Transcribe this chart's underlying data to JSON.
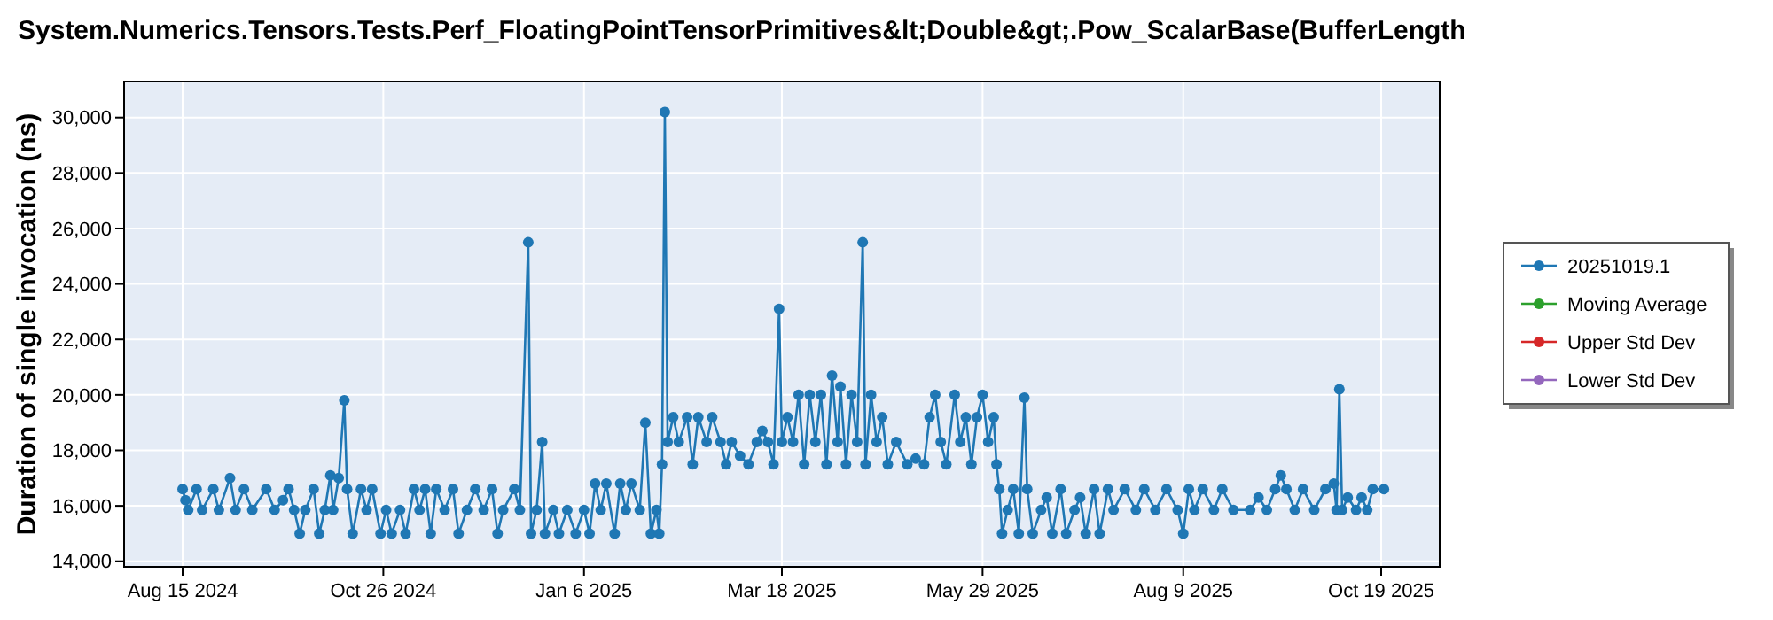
{
  "chart_data": {
    "type": "line",
    "title": "System.Numerics.Tensors.Tests.Perf_FloatingPointTensorPrimitives&lt;Double&gt;.Pow_ScalarBase(BufferLength",
    "ylabel": "Duration of single invocation (ns)",
    "xlim": [
      "2024-07-25",
      "2025-11-09"
    ],
    "xticks": [
      {
        "value": "2024-08-15",
        "label": "Aug 15 2024"
      },
      {
        "value": "2024-10-26",
        "label": "Oct 26 2024"
      },
      {
        "value": "2025-01-06",
        "label": "Jan 6 2025"
      },
      {
        "value": "2025-03-18",
        "label": "Mar 18 2025"
      },
      {
        "value": "2025-05-29",
        "label": "May 29 2025"
      },
      {
        "value": "2025-08-09",
        "label": "Aug 9 2025"
      },
      {
        "value": "2025-10-19",
        "label": "Oct 19 2025"
      }
    ],
    "ylim": [
      13800,
      31300
    ],
    "yticks": [
      {
        "value": 14000,
        "label": "14,000"
      },
      {
        "value": 16000,
        "label": "16,000"
      },
      {
        "value": 18000,
        "label": "18,000"
      },
      {
        "value": 20000,
        "label": "20,000"
      },
      {
        "value": 22000,
        "label": "22,000"
      },
      {
        "value": 24000,
        "label": "24,000"
      },
      {
        "value": 26000,
        "label": "26,000"
      },
      {
        "value": 28000,
        "label": "28,000"
      },
      {
        "value": 30000,
        "label": "30,000"
      }
    ],
    "grid": true,
    "legend": "right",
    "marker": "circle",
    "line_style": "solid",
    "series": [
      {
        "name": "20251019.1",
        "color": "#1f77b4",
        "x": [
          "2024-08-15",
          "2024-08-16",
          "2024-08-17",
          "2024-08-20",
          "2024-08-22",
          "2024-08-26",
          "2024-08-28",
          "2024-09-01",
          "2024-09-03",
          "2024-09-06",
          "2024-09-09",
          "2024-09-14",
          "2024-09-17",
          "2024-09-20",
          "2024-09-22",
          "2024-09-24",
          "2024-09-26",
          "2024-09-28",
          "2024-10-01",
          "2024-10-03",
          "2024-10-05",
          "2024-10-07",
          "2024-10-08",
          "2024-10-10",
          "2024-10-12",
          "2024-10-13",
          "2024-10-15",
          "2024-10-18",
          "2024-10-20",
          "2024-10-22",
          "2024-10-25",
          "2024-10-27",
          "2024-10-29",
          "2024-11-01",
          "2024-11-03",
          "2024-11-06",
          "2024-11-08",
          "2024-11-10",
          "2024-11-12",
          "2024-11-14",
          "2024-11-17",
          "2024-11-20",
          "2024-11-22",
          "2024-11-25",
          "2024-11-28",
          "2024-12-01",
          "2024-12-04",
          "2024-12-06",
          "2024-12-08",
          "2024-12-12",
          "2024-12-14",
          "2024-12-17",
          "2024-12-18",
          "2024-12-20",
          "2024-12-22",
          "2024-12-23",
          "2024-12-26",
          "2024-12-28",
          "2024-12-31",
          "2025-01-03",
          "2025-01-06",
          "2025-01-08",
          "2025-01-10",
          "2025-01-12",
          "2025-01-14",
          "2025-01-17",
          "2025-01-19",
          "2025-01-21",
          "2025-01-23",
          "2025-01-26",
          "2025-01-28",
          "2025-01-30",
          "2025-02-01",
          "2025-02-02",
          "2025-02-03",
          "2025-02-04",
          "2025-02-05",
          "2025-02-07",
          "2025-02-09",
          "2025-02-12",
          "2025-02-14",
          "2025-02-16",
          "2025-02-19",
          "2025-02-21",
          "2025-02-24",
          "2025-02-26",
          "2025-02-28",
          "2025-03-03",
          "2025-03-06",
          "2025-03-09",
          "2025-03-11",
          "2025-03-13",
          "2025-03-15",
          "2025-03-17",
          "2025-03-18",
          "2025-03-20",
          "2025-03-22",
          "2025-03-24",
          "2025-03-26",
          "2025-03-28",
          "2025-03-30",
          "2025-04-01",
          "2025-04-03",
          "2025-04-05",
          "2025-04-07",
          "2025-04-08",
          "2025-04-10",
          "2025-04-12",
          "2025-04-14",
          "2025-04-16",
          "2025-04-17",
          "2025-04-19",
          "2025-04-21",
          "2025-04-23",
          "2025-04-25",
          "2025-04-28",
          "2025-05-02",
          "2025-05-05",
          "2025-05-08",
          "2025-05-10",
          "2025-05-12",
          "2025-05-14",
          "2025-05-16",
          "2025-05-19",
          "2025-05-21",
          "2025-05-23",
          "2025-05-25",
          "2025-05-27",
          "2025-05-29",
          "2025-05-31",
          "2025-06-02",
          "2025-06-03",
          "2025-06-04",
          "2025-06-05",
          "2025-06-07",
          "2025-06-09",
          "2025-06-11",
          "2025-06-13",
          "2025-06-14",
          "2025-06-16",
          "2025-06-19",
          "2025-06-21",
          "2025-06-23",
          "2025-06-26",
          "2025-06-28",
          "2025-07-01",
          "2025-07-03",
          "2025-07-05",
          "2025-07-08",
          "2025-07-10",
          "2025-07-13",
          "2025-07-15",
          "2025-07-19",
          "2025-07-23",
          "2025-07-26",
          "2025-07-30",
          "2025-08-03",
          "2025-08-07",
          "2025-08-09",
          "2025-08-11",
          "2025-08-13",
          "2025-08-16",
          "2025-08-20",
          "2025-08-23",
          "2025-08-27",
          "2025-09-02",
          "2025-09-05",
          "2025-09-08",
          "2025-09-11",
          "2025-09-13",
          "2025-09-15",
          "2025-09-18",
          "2025-09-21",
          "2025-09-25",
          "2025-09-29",
          "2025-10-02",
          "2025-10-03",
          "2025-10-04",
          "2025-10-05",
          "2025-10-07",
          "2025-10-10",
          "2025-10-12",
          "2025-10-14",
          "2025-10-16",
          "2025-10-20"
        ],
        "values": [
          16600,
          16200,
          15850,
          16600,
          15850,
          16600,
          15850,
          17000,
          15850,
          16600,
          15850,
          16600,
          15850,
          16200,
          16600,
          15850,
          15000,
          15850,
          16600,
          15000,
          15850,
          17100,
          15850,
          17000,
          19800,
          16600,
          15000,
          16600,
          15850,
          16600,
          15000,
          15850,
          15000,
          15850,
          15000,
          16600,
          15850,
          16600,
          15000,
          16600,
          15850,
          16600,
          15000,
          15850,
          16600,
          15850,
          16600,
          15000,
          15850,
          16600,
          15850,
          25500,
          15000,
          15850,
          18300,
          15000,
          15850,
          15000,
          15850,
          15000,
          15850,
          15000,
          16800,
          15850,
          16800,
          15000,
          16800,
          15850,
          16800,
          15850,
          19000,
          15000,
          15850,
          15000,
          17500,
          30200,
          18300,
          19200,
          18300,
          19200,
          17500,
          19200,
          18300,
          19200,
          18300,
          17500,
          18300,
          17800,
          17500,
          18300,
          18700,
          18300,
          17500,
          23100,
          18300,
          19200,
          18300,
          20000,
          17500,
          20000,
          18300,
          20000,
          17500,
          20700,
          18300,
          20300,
          17500,
          20000,
          18300,
          25500,
          17500,
          20000,
          18300,
          19200,
          17500,
          18300,
          17500,
          17700,
          17500,
          19200,
          20000,
          18300,
          17500,
          20000,
          18300,
          19200,
          17500,
          19200,
          20000,
          18300,
          19200,
          17500,
          16600,
          15000,
          15850,
          16600,
          15000,
          19900,
          16600,
          15000,
          15850,
          16300,
          15000,
          16600,
          15000,
          15850,
          16300,
          15000,
          16600,
          15000,
          16600,
          15850,
          16600,
          15850,
          16600,
          15850,
          16600,
          15850,
          15000,
          16600,
          15850,
          16600,
          15850,
          16600,
          15850,
          15850,
          16300,
          15850,
          16600,
          17100,
          16600,
          15850,
          16600,
          15850,
          16600,
          16800,
          15850,
          20200,
          15850,
          16300,
          15850,
          16300,
          15850,
          16600,
          16600
        ]
      },
      {
        "name": "Moving Average",
        "color": "#2ca02c"
      },
      {
        "name": "Upper Std Dev",
        "color": "#d62728"
      },
      {
        "name": "Lower Std Dev",
        "color": "#9467bd"
      }
    ]
  }
}
